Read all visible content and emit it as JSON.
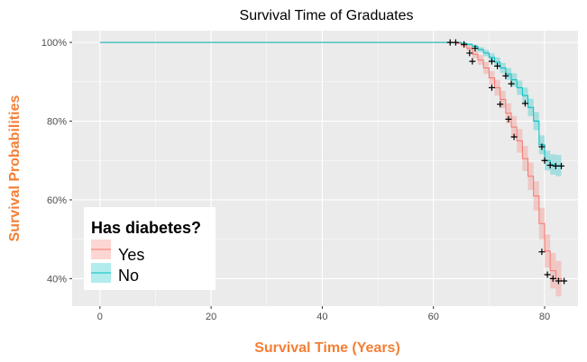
{
  "chart_data": {
    "type": "line",
    "title": "Survival Time of Graduates",
    "xlabel": "Survival Time (Years)",
    "ylabel": "Survival Probabilities",
    "xlim": [
      -5,
      86
    ],
    "ylim": [
      33,
      103
    ],
    "x_ticks": [
      0,
      20,
      40,
      60,
      80
    ],
    "x_tick_labels": [
      "0",
      "20",
      "40",
      "60",
      "80"
    ],
    "y_ticks": [
      40,
      60,
      80,
      100
    ],
    "y_tick_labels": [
      "40%",
      "60%",
      "80%",
      "100%"
    ],
    "grid": true,
    "legend": {
      "title": "Has diabetes?",
      "placement": "bottom-left",
      "entries": [
        "Yes",
        "No"
      ]
    },
    "colors": {
      "axis_title": "#F47F34",
      "panel": "#EBEBEB",
      "grid": "#FFFFFF",
      "censor": "#000000"
    },
    "series": [
      {
        "name": "Yes",
        "color": "#F8766D",
        "fill": "#F8766D",
        "x": [
          0,
          63,
          64,
          65,
          66,
          67,
          68,
          69,
          70,
          71,
          72,
          73,
          74,
          75,
          76,
          77,
          78,
          79,
          80,
          81,
          82,
          83
        ],
        "y": [
          100,
          100,
          99.8,
          99.3,
          98.5,
          97,
          95.5,
          93.5,
          91,
          88.5,
          85.5,
          82,
          78.5,
          75,
          70.5,
          66,
          61,
          54,
          47,
          42,
          40,
          39.5
        ],
        "lower": [
          100,
          100,
          99.5,
          98.8,
          97.8,
          96,
          94.3,
          92,
          89.3,
          86.5,
          83.3,
          79.5,
          75.8,
          72,
          67.3,
          62.5,
          57.3,
          50,
          42.8,
          37.5,
          35.5,
          35
        ],
        "upper": [
          100,
          100,
          100,
          99.7,
          99.2,
          98,
          96.8,
          95,
          92.7,
          90.5,
          87.7,
          84.5,
          81.3,
          78,
          73.7,
          69.5,
          64.7,
          58,
          51.2,
          46.5,
          44.5,
          44
        ],
        "censored_x": [
          66.5,
          67,
          70.5,
          72,
          73.5,
          74.5,
          79.5,
          80.5,
          81.5,
          82.5,
          83.5
        ],
        "censored_y": [
          97.3,
          95.2,
          88.5,
          84.3,
          80.5,
          76,
          46.8,
          41,
          40,
          39.4,
          39.4
        ]
      },
      {
        "name": "No",
        "color": "#00BFC4",
        "fill": "#00BFC4",
        "x": [
          0,
          64,
          65,
          66,
          67,
          68,
          69,
          70,
          71,
          72,
          73,
          74,
          75,
          76,
          77,
          78,
          79,
          80,
          81,
          82,
          83
        ],
        "y": [
          100,
          100,
          99.8,
          99.5,
          99,
          98.2,
          97.3,
          96.2,
          95,
          93.5,
          92,
          90.5,
          88.5,
          86.5,
          83.5,
          80,
          74,
          70,
          69,
          68.7,
          68.6
        ],
        "lower": [
          100,
          100,
          99.6,
          99.2,
          98.6,
          97.6,
          96.5,
          95.2,
          93.8,
          92.2,
          90.5,
          88.8,
          86.7,
          84.5,
          81.3,
          77.7,
          71.6,
          67.5,
          66.4,
          66,
          66
        ],
        "upper": [
          100,
          100,
          100,
          99.8,
          99.4,
          98.8,
          98.1,
          97.2,
          96.2,
          94.8,
          93.5,
          92.2,
          90.3,
          88.5,
          85.7,
          82.3,
          76.4,
          72.5,
          71.6,
          71.4,
          71.3
        ],
        "censored_x": [
          63,
          64,
          65.5,
          67.5,
          70.5,
          71.5,
          73,
          74,
          76.5,
          79.5,
          80,
          81,
          82,
          83
        ],
        "censored_y": [
          100,
          100,
          99.5,
          98.5,
          95.2,
          94,
          91.5,
          89.5,
          84.5,
          73.5,
          70,
          68.8,
          68.6,
          68.6
        ]
      }
    ]
  }
}
